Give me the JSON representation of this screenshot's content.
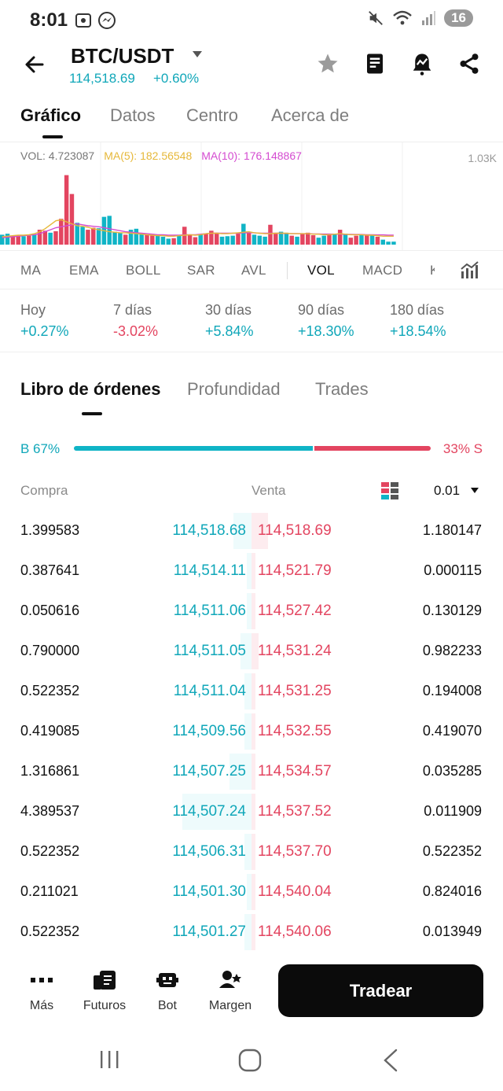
{
  "status_bar": {
    "time": "8:01",
    "battery": "16"
  },
  "header": {
    "pair": "BTC/USDT",
    "price": "114,518.69",
    "change": "+0.60%"
  },
  "tabs": [
    {
      "label": "Gráfico",
      "active": true
    },
    {
      "label": "Datos",
      "active": false
    },
    {
      "label": "Centro",
      "active": false
    },
    {
      "label": "Acerca de",
      "active": false
    }
  ],
  "chart": {
    "vol_legend": "VOL: 4.723087",
    "ma5_legend": "MA(5): 182.56548",
    "ma10_legend": "MA(10): 176.148867",
    "axis_label": "1.03K",
    "colors": {
      "up": "#10b4c6",
      "down": "#e34560",
      "ma5": "#e6b83a",
      "ma10": "#d44bd0"
    }
  },
  "chart_data": {
    "type": "bar",
    "ylim": [
      0,
      1030
    ],
    "values": [
      100,
      110,
      90,
      95,
      85,
      90,
      100,
      150,
      140,
      120,
      135,
      260,
      700,
      510,
      220,
      180,
      150,
      170,
      165,
      280,
      290,
      130,
      120,
      100,
      150,
      160,
      110,
      100,
      95,
      90,
      80,
      60,
      65,
      90,
      180,
      100,
      75,
      100,
      110,
      140,
      120,
      80,
      85,
      90,
      110,
      210,
      120,
      100,
      90,
      80,
      200,
      110,
      130,
      120,
      90,
      80,
      110,
      120,
      95,
      70,
      90,
      100,
      110,
      150,
      110,
      70,
      90,
      100,
      95,
      95,
      80,
      50,
      30,
      30
    ],
    "up": [
      true,
      true,
      false,
      false,
      true,
      false,
      true,
      false,
      false,
      true,
      false,
      false,
      false,
      false,
      true,
      true,
      false,
      false,
      true,
      true,
      true,
      true,
      true,
      false,
      true,
      true,
      true,
      false,
      false,
      true,
      true,
      true,
      false,
      true,
      false,
      false,
      false,
      true,
      false,
      false,
      false,
      true,
      true,
      true,
      false,
      true,
      false,
      true,
      true,
      true,
      false,
      false,
      true,
      true,
      false,
      true,
      false,
      false,
      false,
      true,
      true,
      false,
      true,
      false,
      true,
      false,
      false,
      true,
      false,
      true,
      false,
      true,
      true,
      true
    ],
    "ma5": [
      80,
      85,
      90,
      95,
      95,
      100,
      110,
      130,
      160,
      200,
      240,
      250,
      230,
      210,
      190,
      185,
      175,
      160,
      150,
      140,
      130,
      125,
      120,
      120,
      115,
      110,
      105,
      100,
      95,
      90,
      90,
      85,
      85,
      90,
      95,
      100,
      95,
      100,
      110,
      115,
      115,
      110,
      110,
      115,
      120,
      125,
      130,
      120,
      115,
      110,
      110,
      115,
      115,
      115,
      110,
      110,
      110,
      110,
      105,
      105,
      100,
      100,
      105,
      110,
      105,
      100,
      100,
      100,
      95,
      95,
      90,
      85,
      85,
      85
    ],
    "ma10": [
      70,
      75,
      80,
      85,
      90,
      95,
      100,
      110,
      130,
      150,
      170,
      180,
      190,
      200,
      210,
      200,
      190,
      185,
      180,
      170,
      160,
      150,
      140,
      130,
      125,
      120,
      115,
      110,
      105,
      100,
      100,
      95,
      95,
      95,
      100,
      100,
      100,
      105,
      110,
      115,
      115,
      115,
      115,
      115,
      115,
      120,
      120,
      120,
      115,
      115,
      115,
      115,
      115,
      112,
      112,
      112,
      110,
      110,
      108,
      108,
      106,
      106,
      105,
      105,
      103,
      103,
      102,
      102,
      100,
      100,
      98,
      98,
      96,
      96
    ]
  },
  "indicators": [
    "MA",
    "EMA",
    "BOLL",
    "SAR",
    "AVL",
    "VOL",
    "MACD",
    "K"
  ],
  "active_indicator": "VOL",
  "performance": [
    {
      "label": "Hoy",
      "value": "+0.27%",
      "dir": "pos"
    },
    {
      "label": "7 días",
      "value": "-3.02%",
      "dir": "neg"
    },
    {
      "label": "30 días",
      "value": "+5.84%",
      "dir": "pos"
    },
    {
      "label": "90 días",
      "value": "+18.30%",
      "dir": "pos"
    },
    {
      "label": "180 días",
      "value": "+18.54%",
      "dir": "pos"
    }
  ],
  "orderbook": {
    "tabs": [
      "Libro de órdenes",
      "Profundidad",
      "Trades"
    ],
    "buy_ratio_label": "B 67%",
    "sell_ratio_label": "33% S",
    "buy_ratio": 0.67,
    "header": {
      "compra": "Compra",
      "venta": "Venta",
      "step": "0.01"
    },
    "rows": [
      {
        "bqty": "1.399583",
        "bprice": "114,518.68",
        "sprice": "114,518.69",
        "sqty": "1.180147",
        "bdepth": 0.05,
        "sdepth": 0.07
      },
      {
        "bqty": "0.387641",
        "bprice": "114,514.11",
        "sprice": "114,521.79",
        "sqty": "0.000115",
        "bdepth": 0.01,
        "sdepth": 0.0
      },
      {
        "bqty": "0.050616",
        "bprice": "114,511.06",
        "sprice": "114,527.42",
        "sqty": "0.130129",
        "bdepth": 0.01,
        "sdepth": 0.01
      },
      {
        "bqty": "0.790000",
        "bprice": "114,511.05",
        "sprice": "114,531.24",
        "sqty": "0.982233",
        "bdepth": 0.03,
        "sdepth": 0.03
      },
      {
        "bqty": "0.522352",
        "bprice": "114,511.04",
        "sprice": "114,531.25",
        "sqty": "0.194008",
        "bdepth": 0.02,
        "sdepth": 0.01
      },
      {
        "bqty": "0.419085",
        "bprice": "114,509.56",
        "sprice": "114,532.55",
        "sqty": "0.419070",
        "bdepth": 0.02,
        "sdepth": 0.01
      },
      {
        "bqty": "1.316861",
        "bprice": "114,507.25",
        "sprice": "114,534.57",
        "sqty": "0.035285",
        "bdepth": 0.06,
        "sdepth": 0.01
      },
      {
        "bqty": "4.389537",
        "bprice": "114,507.24",
        "sprice": "114,537.52",
        "sqty": "0.011909",
        "bdepth": 0.19,
        "sdepth": 0.01
      },
      {
        "bqty": "0.522352",
        "bprice": "114,506.31",
        "sprice": "114,537.70",
        "sqty": "0.522352",
        "bdepth": 0.02,
        "sdepth": 0.01
      },
      {
        "bqty": "0.211021",
        "bprice": "114,501.30",
        "sprice": "114,540.04",
        "sqty": "0.824016",
        "bdepth": 0.01,
        "sdepth": 0.01
      },
      {
        "bqty": "0.522352",
        "bprice": "114,501.27",
        "sprice": "114,540.06",
        "sqty": "0.013949",
        "bdepth": 0.02,
        "sdepth": 0.0
      }
    ]
  },
  "bottom_nav": {
    "items": [
      {
        "label": "Más",
        "icon": "more-dots-icon"
      },
      {
        "label": "Futuros",
        "icon": "futures-icon"
      },
      {
        "label": "Bot",
        "icon": "bot-icon"
      },
      {
        "label": "Margen",
        "icon": "margin-icon"
      }
    ],
    "trade_label": "Tradear"
  }
}
